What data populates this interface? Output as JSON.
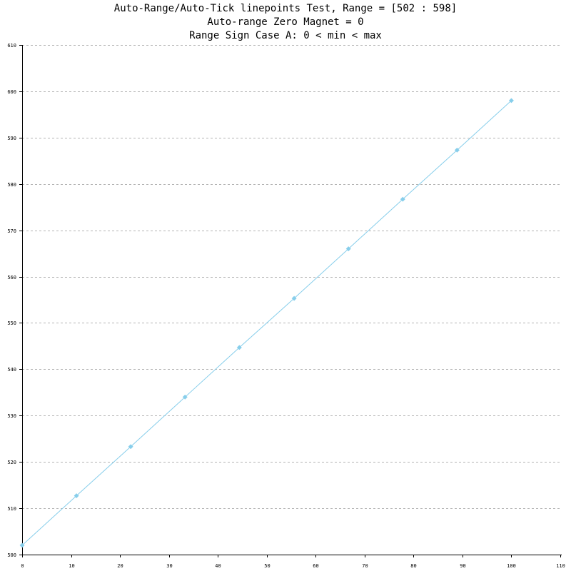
{
  "chart_data": {
    "type": "line",
    "title_lines": [
      "Auto-Range/Auto-Tick linepoints Test, Range = [502 : 598]",
      "Auto-range Zero Magnet = 0",
      "Range Sign Case A: 0 < min < max"
    ],
    "xlabel": "",
    "ylabel": "",
    "xlim": [
      0,
      110
    ],
    "ylim": [
      500,
      610
    ],
    "x_ticks": [
      0,
      10,
      20,
      30,
      40,
      50,
      60,
      70,
      80,
      90,
      100,
      110
    ],
    "y_ticks": [
      500,
      510,
      520,
      530,
      540,
      550,
      560,
      570,
      580,
      590,
      600,
      610
    ],
    "grid": true,
    "legend": "none",
    "series": [
      {
        "color": "#87ceeb",
        "marker": "diamond",
        "points": [
          {
            "x": 0,
            "y": 502
          },
          {
            "x": 11.1,
            "y": 512.7
          },
          {
            "x": 22.2,
            "y": 523.3
          },
          {
            "x": 33.3,
            "y": 534.0
          },
          {
            "x": 44.4,
            "y": 544.7
          },
          {
            "x": 55.6,
            "y": 555.3
          },
          {
            "x": 66.7,
            "y": 566.0
          },
          {
            "x": 77.8,
            "y": 576.7
          },
          {
            "x": 88.9,
            "y": 587.3
          },
          {
            "x": 100,
            "y": 598
          }
        ]
      }
    ]
  }
}
